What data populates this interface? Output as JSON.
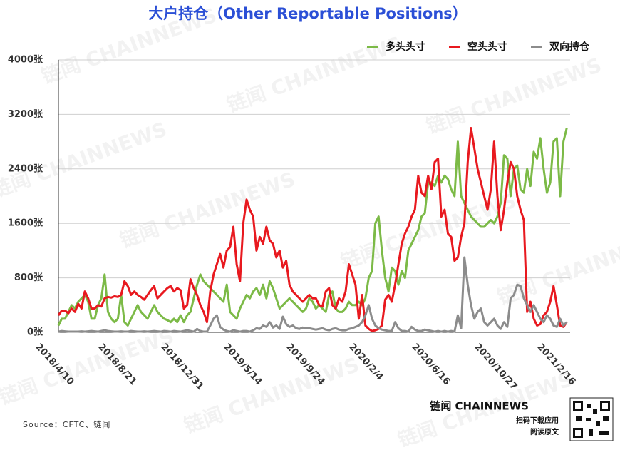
{
  "chart_data": {
    "type": "line",
    "title": "大户持仓（Other Reportable Positions）",
    "source": "Source：CFTC、链闻",
    "brand": "链闻 CHAINNEWS",
    "brand_lines": [
      "扫码下载应用",
      "阅读原文"
    ],
    "watermark": "链闻 CHAINNEWS",
    "legend": "top-right",
    "grid": true,
    "ylim": [
      0,
      4000
    ],
    "yticks": [
      {
        "value": 0,
        "label": "0张"
      },
      {
        "value": 800,
        "label": "800张"
      },
      {
        "value": 1600,
        "label": "1600张"
      },
      {
        "value": 2400,
        "label": "2400张"
      },
      {
        "value": 3200,
        "label": "3200张"
      },
      {
        "value": 4000,
        "label": "4000张"
      }
    ],
    "categories": [
      "2018/4/10",
      null,
      null,
      null,
      null,
      null,
      null,
      null,
      null,
      null,
      null,
      null,
      null,
      null,
      null,
      null,
      null,
      null,
      null,
      "2018/8/21",
      null,
      null,
      null,
      null,
      null,
      null,
      null,
      null,
      null,
      null,
      null,
      null,
      null,
      null,
      null,
      null,
      null,
      null,
      "2018/12/31",
      null,
      null,
      null,
      null,
      null,
      null,
      null,
      null,
      null,
      null,
      null,
      null,
      null,
      null,
      null,
      null,
      null,
      null,
      "2019/5/14",
      null,
      null,
      null,
      null,
      null,
      null,
      null,
      null,
      null,
      null,
      null,
      null,
      null,
      null,
      null,
      null,
      null,
      null,
      "2019/9/24",
      null,
      null,
      null,
      null,
      null,
      null,
      null,
      null,
      null,
      null,
      null,
      null,
      null,
      null,
      null,
      null,
      null,
      null,
      "2020/2/4",
      null,
      null,
      null,
      null,
      null,
      null,
      null,
      null,
      null,
      null,
      null,
      null,
      null,
      null,
      null,
      null,
      null,
      null,
      "2020/6/16",
      null,
      null,
      null,
      null,
      null,
      null,
      null,
      null,
      null,
      null,
      null,
      null,
      null,
      null,
      null,
      null,
      null,
      null,
      "2020/10/27",
      null,
      null,
      null,
      null,
      null,
      null,
      null,
      null,
      null,
      null,
      null,
      null,
      null,
      null,
      null,
      null,
      null,
      null,
      "2021/2/16",
      null,
      null
    ],
    "series": [
      {
        "name": "多头头寸",
        "color": "#7cba47",
        "values": [
          100,
          200,
          200,
          300,
          400,
          350,
          450,
          500,
          550,
          450,
          200,
          200,
          400,
          500,
          850,
          300,
          200,
          150,
          200,
          550,
          150,
          100,
          200,
          300,
          400,
          300,
          250,
          200,
          300,
          400,
          300,
          250,
          200,
          180,
          150,
          200,
          150,
          250,
          150,
          250,
          300,
          500,
          700,
          850,
          750,
          700,
          650,
          600,
          550,
          500,
          450,
          700,
          300,
          250,
          200,
          350,
          450,
          550,
          500,
          600,
          650,
          550,
          700,
          500,
          750,
          650,
          500,
          350,
          400,
          450,
          500,
          450,
          400,
          350,
          300,
          350,
          500,
          450,
          350,
          400,
          350,
          300,
          550,
          600,
          350,
          300,
          300,
          350,
          450,
          400,
          400,
          450,
          400,
          500,
          800,
          900,
          1600,
          1700,
          1200,
          800,
          600,
          950,
          900,
          700,
          900,
          800,
          1200,
          1300,
          1400,
          1500,
          1700,
          1750,
          2200,
          2200,
          2150,
          2300,
          2200,
          2300,
          2250,
          2100,
          2000,
          2800,
          2000,
          1900,
          1800,
          1700,
          1650,
          1600,
          1550,
          1550,
          1600,
          1650,
          1600,
          1700,
          1900,
          2600,
          2550,
          2000,
          2400,
          2450,
          2100,
          2050,
          2400,
          2150,
          2650,
          2550,
          2850,
          2400,
          2050,
          2200,
          2800,
          2850,
          2000,
          2800,
          3000
        ]
      },
      {
        "name": "空头头寸",
        "color": "#e8191f",
        "values": [
          250,
          320,
          320,
          280,
          350,
          300,
          420,
          350,
          600,
          500,
          350,
          350,
          400,
          380,
          500,
          520,
          510,
          530,
          520,
          550,
          750,
          680,
          550,
          600,
          550,
          520,
          480,
          550,
          620,
          680,
          500,
          550,
          600,
          650,
          680,
          600,
          650,
          620,
          350,
          400,
          780,
          650,
          550,
          400,
          300,
          150,
          600,
          850,
          1000,
          1150,
          950,
          1200,
          1250,
          1550,
          1000,
          750,
          1600,
          1950,
          1800,
          1700,
          1200,
          1400,
          1300,
          1550,
          1350,
          1300,
          1100,
          1200,
          950,
          1050,
          700,
          600,
          550,
          500,
          450,
          500,
          550,
          500,
          500,
          400,
          380,
          600,
          650,
          400,
          350,
          500,
          450,
          600,
          1000,
          850,
          700,
          200,
          550,
          100,
          50,
          20,
          30,
          50,
          100,
          480,
          550,
          450,
          700,
          1000,
          1300,
          1450,
          1550,
          1700,
          1800,
          2300,
          2050,
          2000,
          2300,
          2100,
          2500,
          2550,
          1700,
          1800,
          1450,
          1400,
          1050,
          1100,
          1400,
          1600,
          2500,
          3000,
          2700,
          2400,
          2200,
          2000,
          1800,
          2100,
          2800,
          2000,
          1500,
          1800,
          2200,
          2500,
          2400,
          2000,
          1800,
          1650,
          300,
          450,
          200,
          100,
          120,
          250,
          300,
          450,
          680,
          400,
          100,
          80,
          150
        ]
      },
      {
        "name": "双向持仓",
        "color": "#8c8c8c",
        "values": [
          10,
          20,
          15,
          10,
          10,
          10,
          10,
          15,
          10,
          15,
          20,
          15,
          10,
          20,
          30,
          20,
          15,
          10,
          10,
          15,
          10,
          10,
          20,
          15,
          10,
          10,
          15,
          10,
          15,
          20,
          15,
          10,
          20,
          15,
          10,
          20,
          15,
          10,
          20,
          30,
          20,
          10,
          50,
          20,
          10,
          10,
          100,
          200,
          250,
          80,
          40,
          20,
          10,
          30,
          20,
          10,
          20,
          20,
          10,
          30,
          60,
          50,
          100,
          80,
          150,
          70,
          100,
          50,
          230,
          120,
          80,
          100,
          60,
          50,
          70,
          60,
          60,
          50,
          40,
          50,
          60,
          40,
          30,
          50,
          60,
          40,
          30,
          30,
          50,
          60,
          80,
          100,
          150,
          250,
          400,
          200,
          100,
          60,
          40,
          30,
          20,
          20,
          150,
          60,
          20,
          20,
          10,
          80,
          40,
          20,
          20,
          40,
          30,
          20,
          10,
          20,
          10,
          20,
          10,
          20,
          10,
          250,
          60,
          1100,
          700,
          400,
          200,
          300,
          350,
          150,
          100,
          150,
          200,
          100,
          50,
          150,
          80,
          500,
          550,
          700,
          680,
          500,
          400,
          300,
          400,
          300,
          200,
          150,
          250,
          200,
          100,
          80,
          200,
          100,
          150
        ]
      }
    ]
  }
}
